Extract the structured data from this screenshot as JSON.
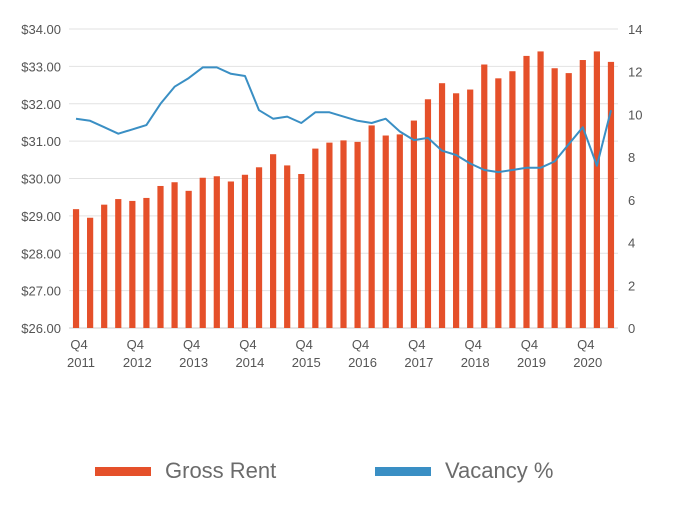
{
  "colors": {
    "rent": "#e5502a",
    "vacancy": "#3a8fc4",
    "grid": "#e2e2e2",
    "axis": "#cccccc"
  },
  "chart_data": {
    "type": "bar+line",
    "y_left": {
      "ticks": [
        "$26.00",
        "$27.00",
        "$28.00",
        "$29.00",
        "$30.00",
        "$31.00",
        "$32.00",
        "$33.00",
        "$34.00"
      ],
      "min": 26,
      "max": 34
    },
    "y_right": {
      "ticks": [
        "0",
        "2",
        "4",
        "6",
        "8",
        "10",
        "12",
        "14"
      ],
      "min": 0,
      "max": 14
    },
    "x_tick_labels": [
      {
        "index": 0,
        "q": "Q4",
        "year": "2011"
      },
      {
        "index": 4,
        "q": "Q4",
        "year": "2012"
      },
      {
        "index": 8,
        "q": "Q4",
        "year": "2013"
      },
      {
        "index": 12,
        "q": "Q4",
        "year": "2014"
      },
      {
        "index": 16,
        "q": "Q4",
        "year": "2015"
      },
      {
        "index": 20,
        "q": "Q4",
        "year": "2016"
      },
      {
        "index": 24,
        "q": "Q4",
        "year": "2017"
      },
      {
        "index": 28,
        "q": "Q4",
        "year": "2018"
      },
      {
        "index": 32,
        "q": "Q4",
        "year": "2019"
      },
      {
        "index": 36,
        "q": "Q4",
        "year": "2020"
      }
    ],
    "series": [
      {
        "name": "Gross Rent",
        "type": "bar",
        "axis": "left",
        "values": [
          29.18,
          28.95,
          29.3,
          29.45,
          29.4,
          29.48,
          29.8,
          29.9,
          29.67,
          30.02,
          30.06,
          29.92,
          30.1,
          30.3,
          30.65,
          30.35,
          30.12,
          30.8,
          30.96,
          31.02,
          30.98,
          31.42,
          31.15,
          31.18,
          31.55,
          32.12,
          32.55,
          32.28,
          32.38,
          33.05,
          32.68,
          32.87,
          33.28,
          33.4,
          32.95,
          32.82,
          33.17,
          33.4,
          33.12
        ]
      },
      {
        "name": "Vacancy %",
        "type": "line",
        "axis": "right",
        "values": [
          9.8,
          9.7,
          9.4,
          9.1,
          9.3,
          9.5,
          10.5,
          11.3,
          11.7,
          12.2,
          12.2,
          11.9,
          11.8,
          10.2,
          9.8,
          9.9,
          9.6,
          10.1,
          10.1,
          9.9,
          9.7,
          9.6,
          9.8,
          9.2,
          8.8,
          8.9,
          8.3,
          8.1,
          7.7,
          7.4,
          7.3,
          7.4,
          7.5,
          7.5,
          7.8,
          8.6,
          9.4,
          7.6,
          10.2
        ]
      }
    ]
  },
  "legend": [
    {
      "label": "Gross Rent",
      "color": "#e5502a"
    },
    {
      "label": "Vacancy %",
      "color": "#3a8fc4"
    }
  ]
}
